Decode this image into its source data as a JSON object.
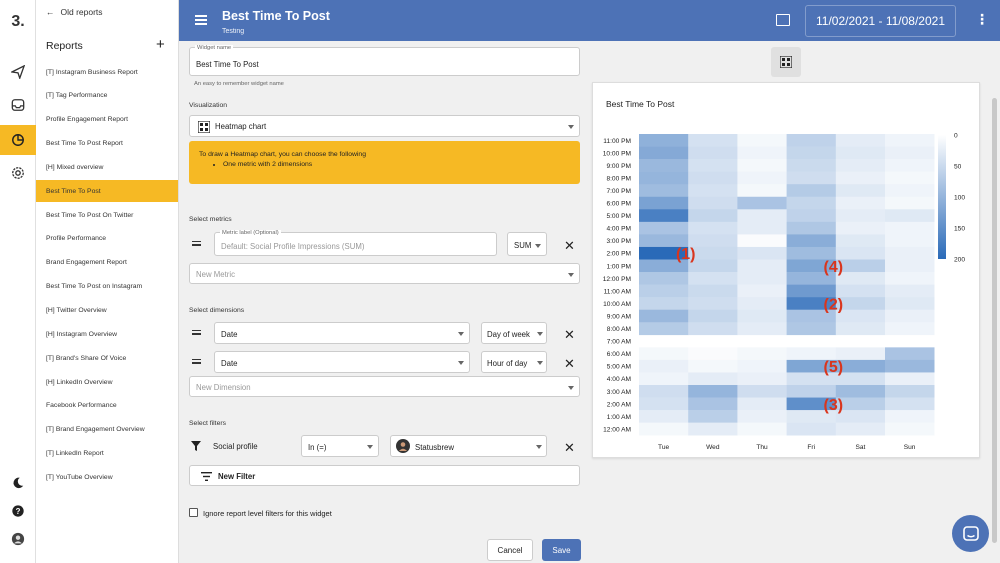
{
  "rail": {
    "logo": "3."
  },
  "sidebar": {
    "back_label": "Old reports",
    "title": "Reports",
    "add_label": "+",
    "items": [
      "[T] Instagram Business Report",
      "[T] Tag Performance",
      "Profile Engagement Report",
      "Best Time To Post Report",
      "[H] Mixed overview",
      "Best Time To Post",
      "Best Time To Post On Twitter",
      "Profile Performance",
      "Brand Engagement Report",
      "Best Time To Post on Instagram",
      "[H] Twitter Overview",
      "[H] Instagram Overview",
      "[T] Brand's Share Of Voice",
      "[H] LinkedIn Overview",
      "Facebook Performance",
      "[T] Brand Engagement Overview",
      "[T] LinkedIn Report",
      "[T] YouTube Overview"
    ],
    "active_index": 5
  },
  "header": {
    "title": "Best Time To Post",
    "subtitle": "Testing",
    "date_range": "11/02/2021 - 11/08/2021",
    "more": "⋮"
  },
  "form": {
    "widget_name_label": "Widget name",
    "widget_name_value": "Best Time To Post",
    "widget_name_hint": "An easy to remember widget name",
    "visualization_label": "Visualization",
    "visualization_value": "Heatmap chart",
    "info_text": "To draw a Heatmap chart, you can choose the following",
    "info_bullet": "One metric with 2 dimensions",
    "metrics_label": "Select metrics",
    "metric_label_small": "Metric label (Optional)",
    "metric_placeholder": "Default: Social Profile Impressions (SUM)",
    "metric_agg": "SUM",
    "new_metric": "New Metric",
    "dimensions_label": "Select dimensions",
    "dimensions": [
      {
        "field": "Date",
        "granularity": "Day of week"
      },
      {
        "field": "Date",
        "granularity": "Hour of day"
      }
    ],
    "new_dimension": "New Dimension",
    "filters_label": "Select filters",
    "filter_field": "Social profile",
    "filter_op": "In (=)",
    "filter_value": "Statusbrew",
    "new_filter": "New Filter",
    "ignore_label": "Ignore report level filters for this widget",
    "cancel": "Cancel",
    "save": "Save"
  },
  "chart_data": {
    "type": "heatmap",
    "title": "Best Time To Post",
    "x_categories": [
      "Tue",
      "Wed",
      "Thu",
      "Fri",
      "Sat",
      "Sun"
    ],
    "y_categories": [
      "11:00 PM",
      "10:00 PM",
      "9:00 PM",
      "8:00 PM",
      "7:00 PM",
      "6:00 PM",
      "5:00 PM",
      "4:00 PM",
      "3:00 PM",
      "2:00 PM",
      "1:00 PM",
      "12:00 PM",
      "11:00 AM",
      "10:00 AM",
      "9:00 AM",
      "8:00 AM",
      "7:00 AM",
      "6:00 AM",
      "5:00 AM",
      "4:00 AM",
      "3:00 AM",
      "2:00 AM",
      "1:00 AM",
      "12:00 AM"
    ],
    "values": [
      [
        105,
        40,
        10,
        60,
        25,
        15
      ],
      [
        115,
        45,
        15,
        55,
        30,
        20
      ],
      [
        95,
        40,
        10,
        50,
        25,
        15
      ],
      [
        100,
        45,
        15,
        45,
        20,
        10
      ],
      [
        90,
        40,
        10,
        70,
        30,
        15
      ],
      [
        125,
        45,
        80,
        55,
        20,
        10
      ],
      [
        170,
        55,
        25,
        60,
        25,
        30
      ],
      [
        80,
        40,
        25,
        75,
        20,
        15
      ],
      [
        95,
        45,
        5,
        110,
        30,
        15
      ],
      [
        200,
        50,
        35,
        90,
        35,
        20
      ],
      [
        110,
        55,
        25,
        120,
        65,
        20
      ],
      [
        75,
        40,
        25,
        100,
        30,
        15
      ],
      [
        65,
        50,
        20,
        135,
        40,
        25
      ],
      [
        55,
        45,
        25,
        170,
        55,
        30
      ],
      [
        95,
        55,
        30,
        80,
        35,
        20
      ],
      [
        70,
        45,
        25,
        75,
        30,
        15
      ],
      [
        null,
        null,
        null,
        null,
        null,
        null
      ],
      [
        10,
        5,
        10,
        15,
        20,
        80
      ],
      [
        20,
        10,
        15,
        120,
        110,
        95
      ],
      [
        15,
        25,
        20,
        40,
        40,
        20
      ],
      [
        45,
        100,
        45,
        60,
        90,
        55
      ],
      [
        40,
        80,
        25,
        150,
        65,
        40
      ],
      [
        25,
        65,
        20,
        30,
        35,
        15
      ],
      [
        10,
        25,
        10,
        35,
        25,
        10
      ]
    ],
    "color_range": [
      0,
      200
    ],
    "legend_ticks": [
      "0",
      "50",
      "100",
      "150",
      "200"
    ],
    "colors": {
      "low": "#ffffff",
      "high": "#2a6ab8"
    },
    "annotations": [
      {
        "text": "(1)",
        "x": "Tue",
        "y": "2:00 PM"
      },
      {
        "text": "(4)",
        "x": "Fri",
        "y": "1:00 PM"
      },
      {
        "text": "(2)",
        "x": "Fri",
        "y": "10:00 AM"
      },
      {
        "text": "(5)",
        "x": "Fri",
        "y": "5:00 AM"
      },
      {
        "text": "(3)",
        "x": "Fri",
        "y": "2:00 AM"
      }
    ],
    "annotation_color": "#d9351d"
  },
  "theme": {
    "primary": "#4d72b6",
    "accent": "#f6b924"
  }
}
